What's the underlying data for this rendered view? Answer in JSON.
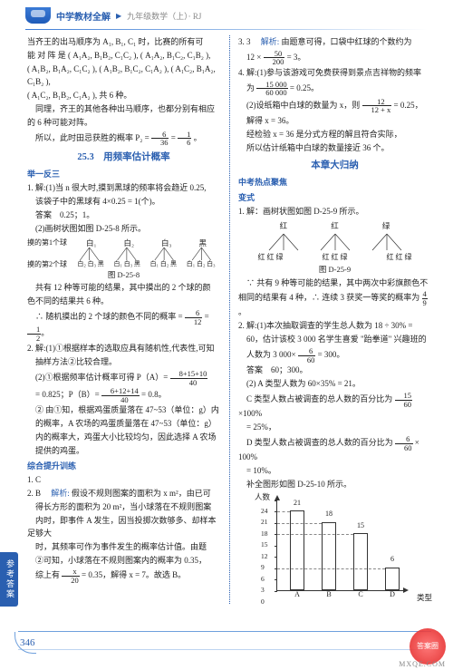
{
  "header": {
    "title": "中学教材全解",
    "sub": "九年级数学（上）· RJ",
    "arrow": "▶"
  },
  "left": {
    "p1": "当齐王的出马顺序为 A₁, B₁, C₁ 时，比赛的所有可",
    "p2": "能 对 阵 是 ( A₁A₂, B₁B₂, C₁C₂ ), ( A₁A₂, B₁C₂, C₁B₂ ),",
    "p3": "( A₁B₂, B₁A₂, C₁C₂ ), ( A₁B₂, B₁C₂, C₁A₂ ), ( A₁C₂, B₁A₂, C₁B₂ ),",
    "p3b": "( A₁C₂, B₁B₂, C₁A₂ ), 共 6 种。",
    "p4": "同理，齐王的其他各种出马顺序，也都分别有相应",
    "p5": "的 6 种可能对阵。",
    "p6a": "所以，此时田忌获胜的概率 P₂ = ",
    "p6b": " = ",
    "p6c": " 。",
    "frac1": {
      "n": "6",
      "d": "36"
    },
    "frac2": {
      "n": "1",
      "d": "6"
    },
    "sec25_3": "25.3　用频率估计概率",
    "jyfs": "举一反三",
    "q1": "1. 解:(1)当 n 很大时,摸到黑球的频率将会趋近 0.25,",
    "q1b": "该袋子中的黑球有 4×0.25 = 1(个)。",
    "q1c": "答案　0.25；1。",
    "q1d": "(2)画树状图如图 D-25-8 所示。",
    "tree1": {
      "rowTopLbl": "摸的第1个球",
      "rowBotLbl": "摸的第2个球",
      "top": [
        "白₁",
        "白₂",
        "白₃",
        "黑"
      ],
      "bottom": [
        "白₂ 白₃ 黑",
        "白₁ 白₃ 黑",
        "白₁ 白₂ 黑",
        "白₁ 白₂ 白₃"
      ]
    },
    "cap1": "图 D-25-8",
    "q1e": "共有 12 种等可能的结果，其中摸出的 2 个球的颜",
    "q1e2": "色不同的结果共 6 种。",
    "q1f": "∴ 随机摸出的 2 个球的颜色不同的概率 = ",
    "frac3": {
      "n": "6",
      "d": "12"
    },
    "frac3b": {
      "n": "1",
      "d": "2"
    },
    "q2": "2. 解:(1)①根据样本的选取应具有随机性,代表性,可知",
    "q2b": "抽样方法②比较合理。",
    "q2c": "(2)①根据频率估计概率可得 P（A）= ",
    "frac4": {
      "n": "8+15+10",
      "d": "40"
    },
    "q2d": "= 0.825；P（B）= ",
    "frac5": {
      "n": "6+12+14",
      "d": "40"
    },
    "q2d2": " = 0.8。",
    "q2e": "② 由①知，根据鸡蛋质量落在 47~53（单位：g）内",
    "q2e2": "的概率，A 农场的鸡蛋质量落在 47~53（单位：g）",
    "q2e3": "内的概率大，鸡蛋大小比较均匀，因此选择 A 农场",
    "q2e4": "提供的鸡蛋。",
    "zhts": "综合提升训练",
    "a1": "1. C",
    "a2": "2. B　",
    "a2lbl": "解析:",
    "a2a": "假设不规则图案的面积为 x m²，由已可",
    "a2a2": "得长方形的面积为 20 m²，当小球落在不规则图案",
    "a2a3": "内时，即事件 A 发生，因当投掷次数够多、却样本足够大",
    "a2a4": "时，其频率可作为事件发生的概率估计值。由题",
    "a2a5": "②可知，小球落在不规则图案内的概率为 0.35，",
    "a2f": "综上有",
    "frac6": {
      "n": "x",
      "d": "20"
    },
    "a2g": " = 0.35，解得 x = 7。故选 B。"
  },
  "right": {
    "r1": "3. 3　",
    "r1lbl": "解析:",
    "r1a": "由题意可得，口袋中红球的个数约为",
    "r1b": "12 × ",
    "frac7": {
      "n": "50",
      "d": "200"
    },
    "r1c": " = 3。",
    "r2": "4. 解:(1)参与该游戏可免费获得到景点吉祥物的频率",
    "r2a": "为 ",
    "frac8": {
      "n": "15 000",
      "d": "60 000"
    },
    "r2b": " = 0.25。",
    "r2c": "(2)设纸箱中白球的数量为 x，则",
    "frac9": {
      "n": "12",
      "d": "12 + x"
    },
    "r2d": " = 0.25，",
    "r2e": "解得 x = 36。",
    "r2f": "经检验 x = 36 是分式方程的解且符合实际，",
    "r2g": "所以估计纸箱中白球的数量接近 36 个。",
    "chapter": "本章大归纳",
    "hot": "中考热点聚焦",
    "bs": "变式",
    "b1": "1. 解：画树状图如图 D-25-9 所示。",
    "tree2": {
      "top": [
        "红",
        "红",
        "绿"
      ],
      "bottom": [
        "红 红 绿",
        "红 红 绿",
        "红 红 绿"
      ]
    },
    "cap2": "图 D-25-9",
    "b1a": "∵ 共有 9 种等可能的结果，其中两次中彩旗颜色不",
    "b1a2": "相同的结果有 4 种，∴ 连续 3 获奖一等奖的概率为",
    "frac10": {
      "n": "4",
      "d": "9"
    },
    "b1a3": "。",
    "b2": "2. 解:(1)本次抽取调查的学生总人数为 18 ÷ 30% =",
    "b2a": "60，估计该校 3 000 名学生喜爱 \"跆拳道\" 兴趣班的",
    "b2b": "人数为 3 000×",
    "frac11": {
      "n": "6",
      "d": "60"
    },
    "b2b2": " = 300。",
    "b2c": "答案　60；300。",
    "b2d": "(2) A 类型人数为 60×35% = 21。",
    "b2e": "C 类型人数占被调查的总人数的百分比为",
    "frac12": {
      "n": "15",
      "d": "60"
    },
    "b2e2": " ×100%",
    "b2e3": "= 25%，",
    "b2f": "D 类型人数占被调查的总人数的百分比为",
    "frac13": {
      "n": "6",
      "d": "60"
    },
    "b2f2": " × 100%",
    "b2f3": "= 10%。",
    "b2g": "补全图形如图 D-25-10 所示。",
    "chart": {
      "ylabel": "人数",
      "xlabel": "类型",
      "ymax": 24,
      "ytick": 3,
      "bars": [
        {
          "label": "A",
          "value": 21
        },
        {
          "label": "B",
          "value": 18
        },
        {
          "label": "C",
          "value": 15
        },
        {
          "label": "D",
          "value": 6
        }
      ],
      "ticks": [
        "24",
        "21",
        "18",
        "15",
        "12",
        "9",
        "6",
        "3",
        "0"
      ]
    }
  },
  "sidetab": "参考答案",
  "pagenum": "346",
  "wm": "答案圈",
  "wmtext": "MXQE.COM"
}
